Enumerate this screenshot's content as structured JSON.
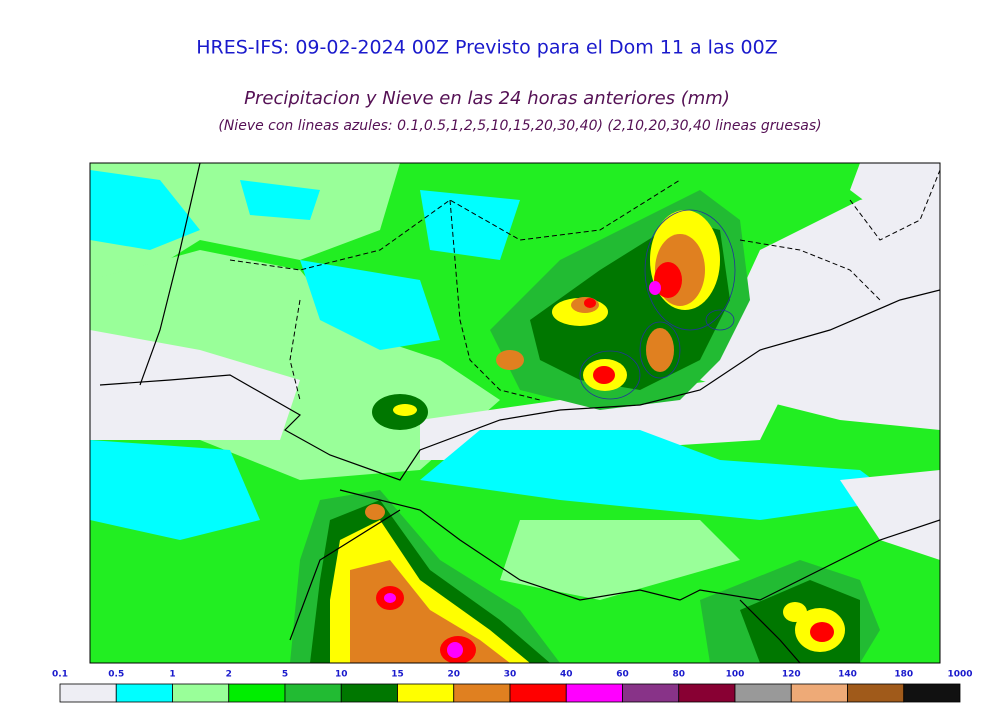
{
  "header": {
    "title": "HRES-IFS: 09-02-2024 00Z Previsto para el Dom 11 a las 00Z",
    "subtitle": "Precipitacion y Nieve en las 24 horas anteriores (mm)",
    "note": "(Nieve con lineas azules: 0.1,0.5,1,2,5,10,15,20,30,40)  (2,10,20,30,40 lineas gruesas)"
  },
  "colorbar": {
    "labels": [
      "0.1",
      "0.5",
      "1",
      "2",
      "5",
      "10",
      "15",
      "20",
      "30",
      "40",
      "60",
      "80",
      "100",
      "120",
      "140",
      "180",
      "1000"
    ],
    "colors": [
      "#eeeef4",
      "#00ffff",
      "#99ff99",
      "#00ee00",
      "#22bb33",
      "#007700",
      "#ffff00",
      "#e08020",
      "#ff0000",
      "#ff00ff",
      "#883388",
      "#880033",
      "#999999",
      "#eeaa77",
      "#a05a1a",
      "#111111"
    ]
  }
}
